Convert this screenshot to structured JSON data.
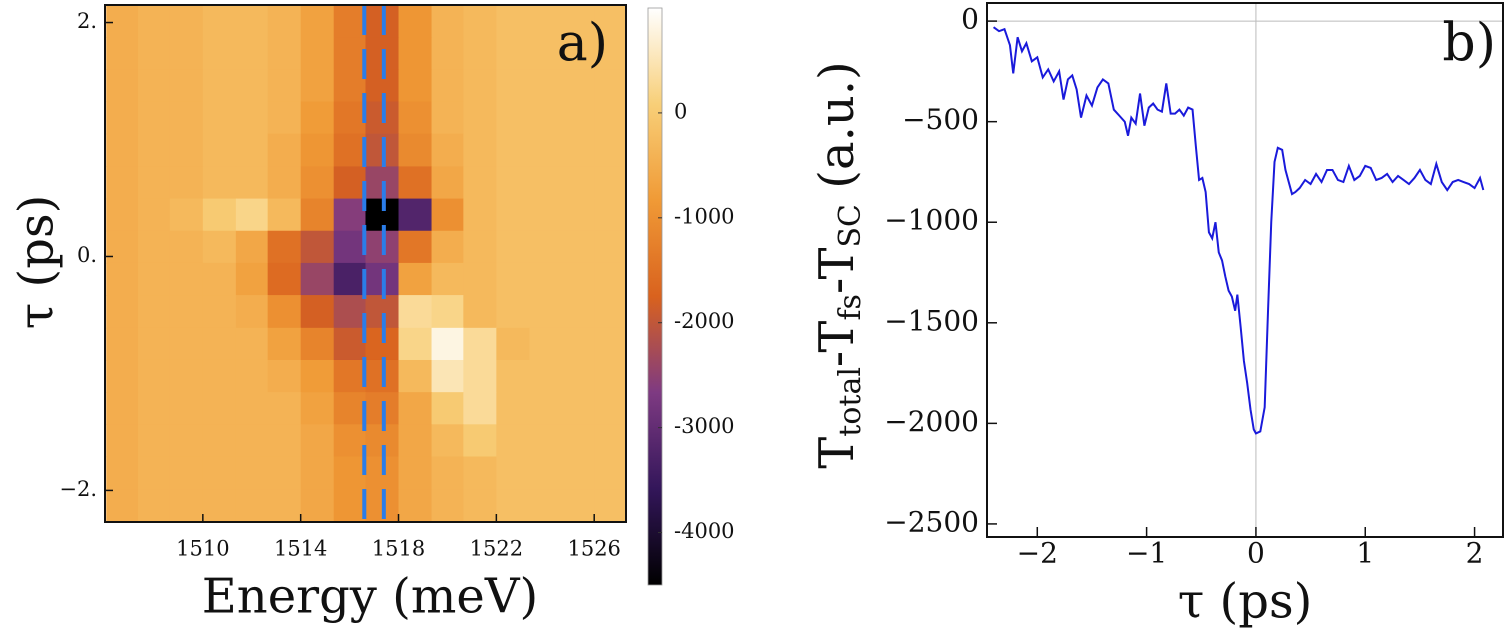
{
  "chart_data": [
    {
      "type": "heatmap",
      "label": "a)",
      "xlabel": "Energy (meV)",
      "ylabel": "τ (ps)",
      "x": [
        1506.7,
        1508.0,
        1509.3,
        1510.7,
        1512.0,
        1513.3,
        1514.7,
        1516.0,
        1517.3,
        1518.7,
        1520.0,
        1521.3,
        1522.7,
        1524.0,
        1525.3,
        1526.7
      ],
      "y": [
        2.01,
        1.74,
        1.46,
        1.19,
        0.91,
        0.63,
        0.36,
        0.08,
        -0.19,
        -0.47,
        -0.75,
        -1.02,
        -1.3,
        -1.57,
        -1.85,
        -2.13
      ],
      "z": [
        [
          -500,
          -400,
          -400,
          -300,
          -300,
          -400,
          -700,
          -1300,
          -1800,
          -900,
          -400,
          -300,
          -200,
          -200,
          -200,
          -200
        ],
        [
          -500,
          -400,
          -400,
          -300,
          -300,
          -400,
          -700,
          -1300,
          -1800,
          -900,
          -400,
          -300,
          -200,
          -200,
          -200,
          -200
        ],
        [
          -500,
          -400,
          -400,
          -300,
          -300,
          -400,
          -700,
          -1300,
          -1800,
          -900,
          -400,
          -300,
          -200,
          -200,
          -200,
          -200
        ],
        [
          -500,
          -400,
          -400,
          -300,
          -300,
          -400,
          -800,
          -1400,
          -1900,
          -1000,
          -400,
          -300,
          -200,
          -200,
          -200,
          -200
        ],
        [
          -500,
          -400,
          -400,
          -300,
          -300,
          -500,
          -900,
          -1500,
          -2000,
          -1100,
          -500,
          -300,
          -200,
          -200,
          -200,
          -200
        ],
        [
          -500,
          -400,
          -400,
          -300,
          -300,
          -500,
          -1000,
          -1800,
          -2400,
          -1500,
          -600,
          -300,
          -200,
          -200,
          -200,
          -200
        ],
        [
          -500,
          -400,
          -300,
          0,
          200,
          -300,
          -1200,
          -2600,
          -4500,
          -3200,
          -1000,
          -300,
          -200,
          -200,
          -200,
          -200
        ],
        [
          -500,
          -400,
          -400,
          -300,
          -600,
          -1500,
          -2000,
          -2800,
          -2500,
          -1400,
          -500,
          -300,
          -200,
          -200,
          -200,
          -200
        ],
        [
          -500,
          -400,
          -400,
          -400,
          -700,
          -1600,
          -2400,
          -3300,
          -2800,
          -700,
          -300,
          -300,
          -200,
          -200,
          -200,
          -200
        ],
        [
          -500,
          -400,
          -400,
          -400,
          -500,
          -1000,
          -1800,
          -2200,
          -2000,
          300,
          200,
          -300,
          -200,
          -200,
          -200,
          -200
        ],
        [
          -500,
          -400,
          -400,
          -400,
          -400,
          -700,
          -1200,
          -1900,
          -1700,
          200,
          800,
          300,
          -300,
          -200,
          -200,
          -200
        ],
        [
          -500,
          -400,
          -400,
          -400,
          -400,
          -500,
          -800,
          -1400,
          -1500,
          -300,
          500,
          300,
          -200,
          -200,
          -200,
          -200
        ],
        [
          -500,
          -400,
          -400,
          -400,
          -400,
          -400,
          -700,
          -1200,
          -1300,
          -600,
          0,
          300,
          -200,
          -200,
          -200,
          -200
        ],
        [
          -500,
          -400,
          -400,
          -400,
          -400,
          -400,
          -600,
          -1000,
          -1100,
          -600,
          -300,
          0,
          -200,
          -200,
          -200,
          -200
        ],
        [
          -500,
          -400,
          -400,
          -400,
          -400,
          -400,
          -600,
          -900,
          -1000,
          -600,
          -400,
          -300,
          -200,
          -200,
          -200,
          -200
        ],
        [
          -500,
          -400,
          -400,
          -400,
          -400,
          -400,
          -600,
          -900,
          -1000,
          -600,
          -400,
          -300,
          -200,
          -200,
          -200,
          -200
        ]
      ],
      "xlim": [
        1506,
        1527.3
      ],
      "ylim": [
        -2.27,
        2.15
      ],
      "xticks": [
        1510,
        1514,
        1518,
        1522,
        1526
      ],
      "yticks": [
        {
          "value": 2,
          "label": "2."
        },
        {
          "value": 0,
          "label": "0."
        },
        {
          "value": -2,
          "label": "−2."
        }
      ],
      "zlim": [
        -4500,
        1000
      ],
      "zticks": [
        0,
        -1000,
        -2000,
        -3000,
        -4000
      ],
      "colors": [
        "#000000",
        "#33165a",
        "#7e3a82",
        "#d9621e",
        "#f09a36",
        "#f8cf78",
        "#ffffff"
      ],
      "vlines": {
        "x": [
          1516.6,
          1517.4
        ],
        "color": "#2b7de9"
      }
    },
    {
      "type": "line",
      "label": "b)",
      "xlabel": "τ (ps)",
      "ylabel": [
        "T",
        "total",
        "-T",
        "fs",
        "-T",
        "SC",
        " (a.u.)"
      ],
      "x": [
        -2.4,
        -2.35,
        -2.3,
        -2.25,
        -2.22,
        -2.18,
        -2.14,
        -2.1,
        -2.05,
        -2.0,
        -1.95,
        -1.9,
        -1.85,
        -1.8,
        -1.76,
        -1.72,
        -1.68,
        -1.64,
        -1.6,
        -1.55,
        -1.5,
        -1.45,
        -1.4,
        -1.35,
        -1.3,
        -1.25,
        -1.2,
        -1.17,
        -1.14,
        -1.1,
        -1.06,
        -1.02,
        -0.98,
        -0.94,
        -0.9,
        -0.86,
        -0.82,
        -0.78,
        -0.74,
        -0.7,
        -0.66,
        -0.62,
        -0.58,
        -0.55,
        -0.52,
        -0.49,
        -0.46,
        -0.43,
        -0.4,
        -0.37,
        -0.34,
        -0.31,
        -0.28,
        -0.25,
        -0.22,
        -0.19,
        -0.17,
        -0.14,
        -0.11,
        -0.08,
        -0.05,
        -0.02,
        0.0,
        0.04,
        0.08,
        0.11,
        0.14,
        0.17,
        0.2,
        0.24,
        0.27,
        0.3,
        0.33,
        0.36,
        0.4,
        0.45,
        0.5,
        0.55,
        0.6,
        0.65,
        0.7,
        0.75,
        0.8,
        0.85,
        0.9,
        0.95,
        1.0,
        1.05,
        1.1,
        1.15,
        1.2,
        1.25,
        1.3,
        1.35,
        1.4,
        1.45,
        1.5,
        1.55,
        1.6,
        1.65,
        1.7,
        1.75,
        1.8,
        1.85,
        1.9,
        1.95,
        2.0,
        2.05,
        2.08
      ],
      "series": [
        {
          "color": "#1a1adb",
          "values": [
            -30,
            -50,
            -40,
            -120,
            -260,
            -80,
            -150,
            -110,
            -200,
            -180,
            -280,
            -240,
            -300,
            -250,
            -390,
            -290,
            -270,
            -340,
            -480,
            -370,
            -420,
            -330,
            -290,
            -310,
            -440,
            -470,
            -500,
            -570,
            -480,
            -510,
            -360,
            -520,
            -430,
            -410,
            -440,
            -450,
            -310,
            -460,
            -460,
            -440,
            -470,
            -430,
            -440,
            -620,
            -790,
            -780,
            -850,
            -1050,
            -1080,
            -1000,
            -1150,
            -1190,
            -1270,
            -1340,
            -1370,
            -1440,
            -1360,
            -1520,
            -1690,
            -1800,
            -1930,
            -2030,
            -2050,
            -2040,
            -1920,
            -1450,
            -1000,
            -700,
            -630,
            -640,
            -740,
            -800,
            -860,
            -850,
            -830,
            -790,
            -810,
            -760,
            -800,
            -740,
            -740,
            -790,
            -800,
            -720,
            -790,
            -770,
            -720,
            -730,
            -790,
            -780,
            -760,
            -800,
            -770,
            -790,
            -810,
            -780,
            -740,
            -790,
            -810,
            -710,
            -800,
            -840,
            -800,
            -790,
            -800,
            -810,
            -830,
            -780,
            -840
          ]
        }
      ],
      "xlim": [
        -2.46,
        2.26
      ],
      "ylim": [
        -2565,
        90
      ],
      "xticks": [
        {
          "value": -2,
          "label": "−2"
        },
        {
          "value": -1,
          "label": "−1"
        },
        0,
        1,
        2
      ],
      "yticks": [
        0,
        {
          "value": -500,
          "label": "−500"
        },
        {
          "value": -1000,
          "label": "−1000"
        },
        {
          "value": -1500,
          "label": "−1500"
        },
        {
          "value": -2000,
          "label": "−2000"
        },
        {
          "value": -2500,
          "label": "−2500"
        }
      ],
      "zero_lines": true
    }
  ]
}
